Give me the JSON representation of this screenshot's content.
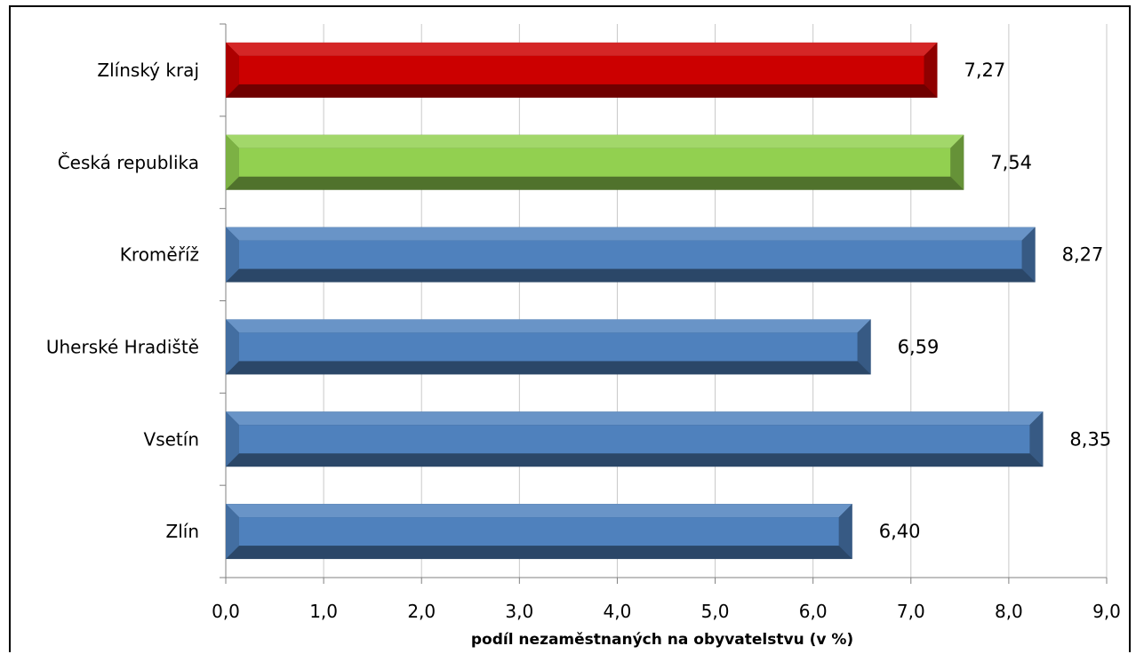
{
  "chart_data": {
    "type": "bar",
    "orientation": "horizontal",
    "categories": [
      "Zlínský kraj",
      "Česká republika",
      "Kroměříž",
      "Uherské Hradiště",
      "Vsetín",
      "Zlín"
    ],
    "values": [
      7.27,
      7.54,
      8.27,
      6.59,
      8.35,
      6.4
    ],
    "value_labels": [
      "7,27",
      "7,54",
      "8,27",
      "6,59",
      "8,35",
      "6,40"
    ],
    "colors": [
      "#cc0000",
      "#92d050",
      "#4f81bd",
      "#4f81bd",
      "#4f81bd",
      "#4f81bd"
    ],
    "xlabel": "podíl nezaměstnaných na obyvatelstvu (v %)",
    "xlim": [
      0,
      9
    ],
    "x_ticks": [
      0,
      1,
      2,
      3,
      4,
      5,
      6,
      7,
      8,
      9
    ],
    "x_tick_labels": [
      "0,0",
      "1,0",
      "2,0",
      "3,0",
      "4,0",
      "5,0",
      "6,0",
      "7,0",
      "8,0",
      "9,0"
    ],
    "grid": "vertical",
    "legend": "none"
  }
}
